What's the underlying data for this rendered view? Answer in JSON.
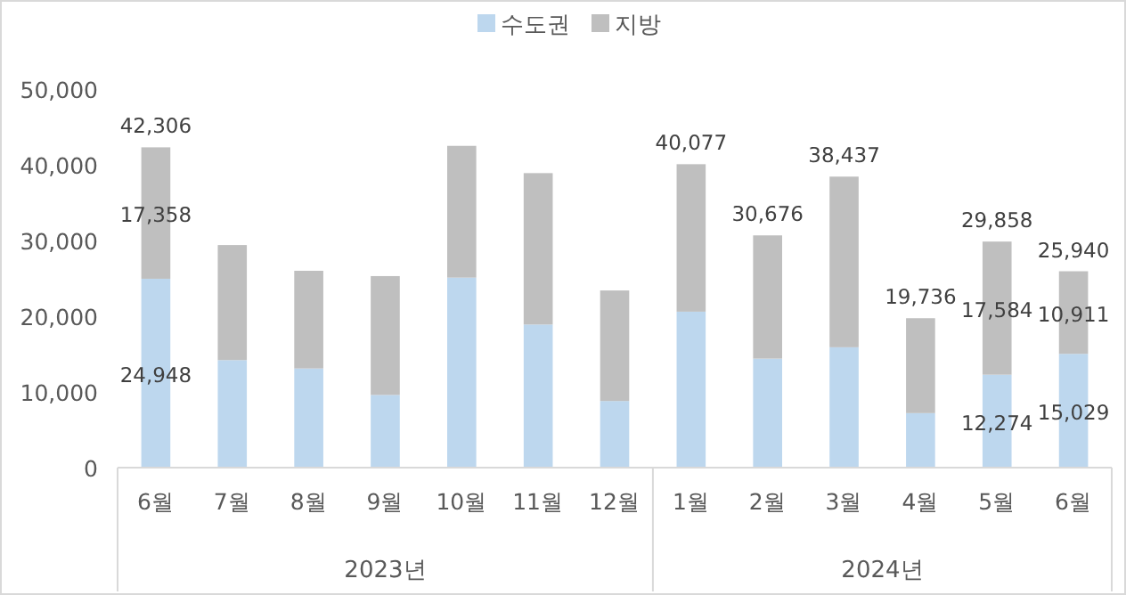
{
  "chart_data": {
    "type": "bar",
    "stacked": true,
    "categories": [
      "6월",
      "7월",
      "8월",
      "9월",
      "10월",
      "11월",
      "12월",
      "1월",
      "2월",
      "3월",
      "4월",
      "5월",
      "6월"
    ],
    "series": [
      {
        "name": "수도권",
        "color": "#bdd7ee",
        "values": [
          24948,
          14200,
          13100,
          9600,
          25100,
          18900,
          8800,
          20600,
          14400,
          15900,
          7200,
          12274,
          15029
        ],
        "value_labels": [
          "24,948",
          null,
          null,
          null,
          null,
          null,
          null,
          null,
          null,
          null,
          null,
          "12,274",
          "15,029"
        ]
      },
      {
        "name": "지방",
        "color": "#bfbfbf",
        "values": [
          17358,
          15200,
          12900,
          15700,
          17400,
          20000,
          14600,
          19477,
          16276,
          22537,
          12536,
          17584,
          10911
        ],
        "value_labels": [
          "17,358",
          null,
          null,
          null,
          null,
          null,
          null,
          null,
          null,
          null,
          null,
          "17,584",
          "10,911"
        ]
      }
    ],
    "totals": [
      "42,306",
      null,
      null,
      null,
      null,
      null,
      null,
      "40,077",
      "30,676",
      "38,437",
      "19,736",
      "29,858",
      "25,940"
    ],
    "annotations": [
      "2023년",
      "2024년"
    ],
    "ylim": [
      0,
      50000
    ],
    "yticks": [
      {
        "value": 0,
        "label": "0"
      },
      {
        "value": 10000,
        "label": "10,000"
      },
      {
        "value": 20000,
        "label": "20,000"
      },
      {
        "value": 30000,
        "label": "30,000"
      },
      {
        "value": 40000,
        "label": "40,000"
      },
      {
        "value": 50000,
        "label": "50,000"
      }
    ],
    "grid": false,
    "legend": "top"
  }
}
